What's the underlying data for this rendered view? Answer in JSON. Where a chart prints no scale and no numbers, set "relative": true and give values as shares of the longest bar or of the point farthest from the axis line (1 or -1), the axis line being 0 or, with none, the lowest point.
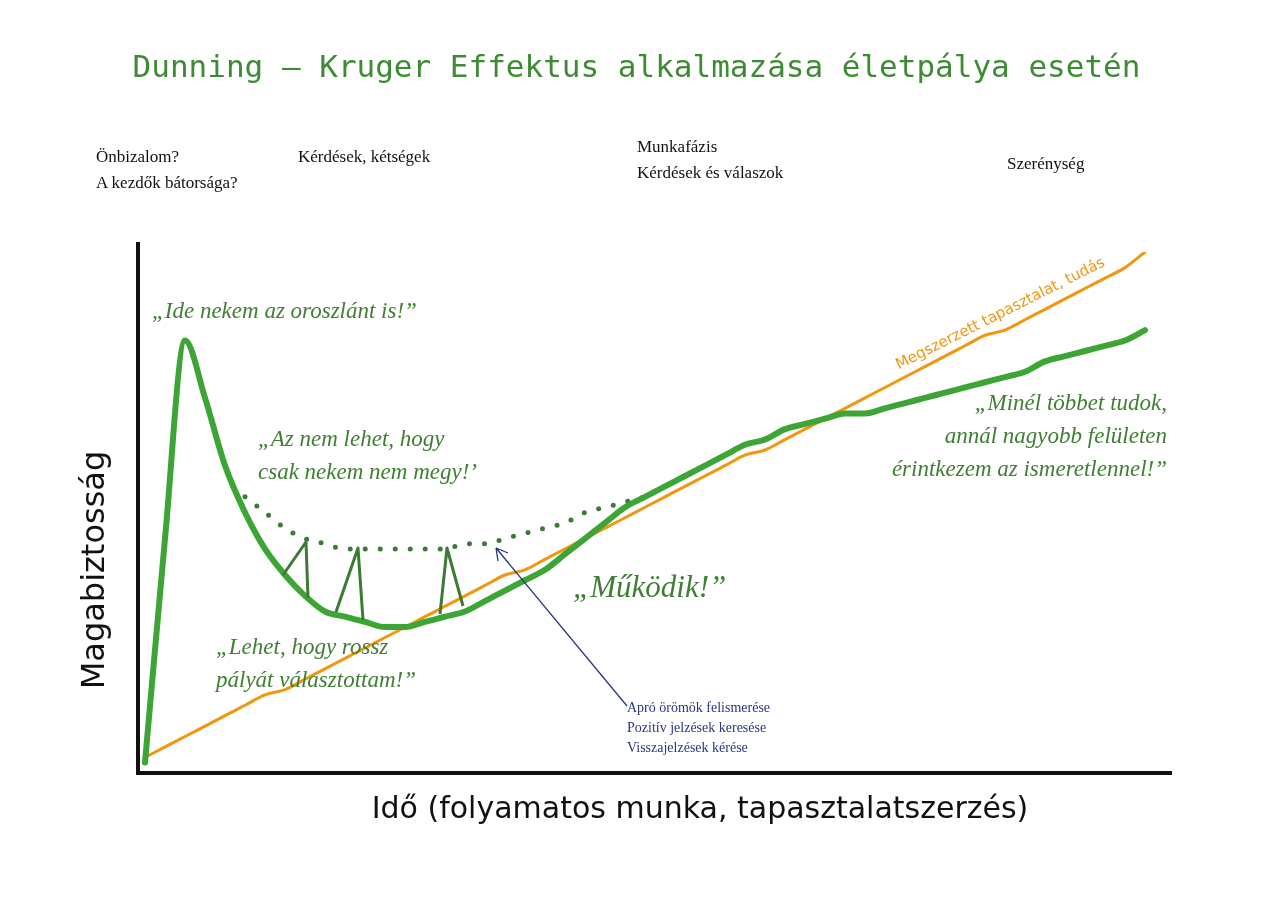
{
  "chart_data": {
    "type": "line",
    "title": "Dunning – Kruger Effektus alkalmazása életpálya esetén",
    "xlabel": "Idő (folyamatos munka, tapasztalatszerzés)",
    "ylabel": "Magabiztosság",
    "relative": true,
    "marker": "none",
    "legend": false,
    "categories": [
      null,
      null,
      null,
      null,
      null,
      null,
      null,
      null,
      null,
      null,
      null,
      null,
      null,
      null,
      null,
      null,
      null,
      null,
      null,
      null,
      null,
      null,
      null,
      null,
      null,
      null,
      null,
      null,
      null,
      null,
      null,
      null,
      null,
      null,
      null,
      null,
      null,
      null,
      null,
      null,
      null,
      null,
      null,
      null,
      null,
      null,
      null,
      null,
      null,
      null,
      null
    ],
    "series": [
      {
        "color": "#3da535",
        "line_style": "solid",
        "values": [
          0.02,
          0.45,
          0.83,
          0.72,
          0.59,
          0.5,
          0.43,
          0.38,
          0.34,
          0.31,
          0.3,
          0.29,
          0.28,
          0.28,
          0.29,
          0.3,
          0.31,
          0.33,
          0.35,
          0.37,
          0.39,
          0.42,
          0.45,
          0.48,
          0.51,
          0.53,
          0.55,
          0.57,
          0.59,
          0.61,
          0.63,
          0.64,
          0.66,
          0.67,
          0.68,
          0.69,
          0.69,
          0.7,
          0.71,
          0.72,
          0.73,
          0.74,
          0.75,
          0.76,
          0.77,
          0.79,
          0.8,
          0.81,
          0.82,
          0.83,
          0.85
        ]
      },
      {
        "color": "#3d7a35",
        "line_style": "dotted",
        "values": [
          null,
          null,
          null,
          null,
          null,
          0.53,
          0.5,
          0.47,
          0.45,
          0.44,
          0.43,
          0.43,
          0.43,
          0.43,
          0.43,
          0.43,
          0.44,
          0.44,
          0.45,
          0.46,
          0.47,
          0.48,
          0.5,
          0.51,
          0.52,
          0.53,
          null,
          null,
          null,
          null,
          null,
          null,
          null,
          null,
          null,
          null,
          null,
          null,
          null,
          null,
          null,
          null,
          null,
          null,
          null,
          null,
          null,
          null,
          null,
          null,
          null
        ]
      },
      {
        "name": "Megszerzett tapasztalat, tudás",
        "color": "#f0960f",
        "line_style": "solid",
        "values": [
          0.03,
          0.05,
          0.07,
          0.09,
          0.11,
          0.13,
          0.15,
          0.16,
          0.18,
          0.2,
          0.22,
          0.24,
          0.26,
          0.28,
          0.3,
          0.32,
          0.34,
          0.36,
          0.38,
          0.39,
          0.41,
          0.43,
          0.45,
          0.47,
          0.49,
          0.51,
          0.53,
          0.55,
          0.57,
          0.59,
          0.61,
          0.62,
          0.64,
          0.66,
          0.68,
          0.7,
          0.72,
          0.74,
          0.76,
          0.78,
          0.8,
          0.82,
          0.84,
          0.85,
          0.87,
          0.89,
          0.91,
          0.93,
          0.95,
          0.97,
          1
        ]
      }
    ],
    "annotations": [
      "Önbizalom?\nA kezdők bátorsága?",
      "Kérdések, kétségek",
      "Munkafázis\nKérdések és válaszok",
      "Szerénység",
      "„Ide nekem az oroszlánt is!”",
      "„Az nem lehet, hogy\ncsak nekem nem megy!’",
      "„Lehet, hogy rossz\npályát választottam!”",
      "„Működik!”",
      "„Minél többet tudok,\nannál nagyobb felületen\nérintkezem az ismeretlennel!”",
      "Apró örömök felismerése\nPozitív jelzések keresése\nVisszajelzések kérése"
    ]
  }
}
